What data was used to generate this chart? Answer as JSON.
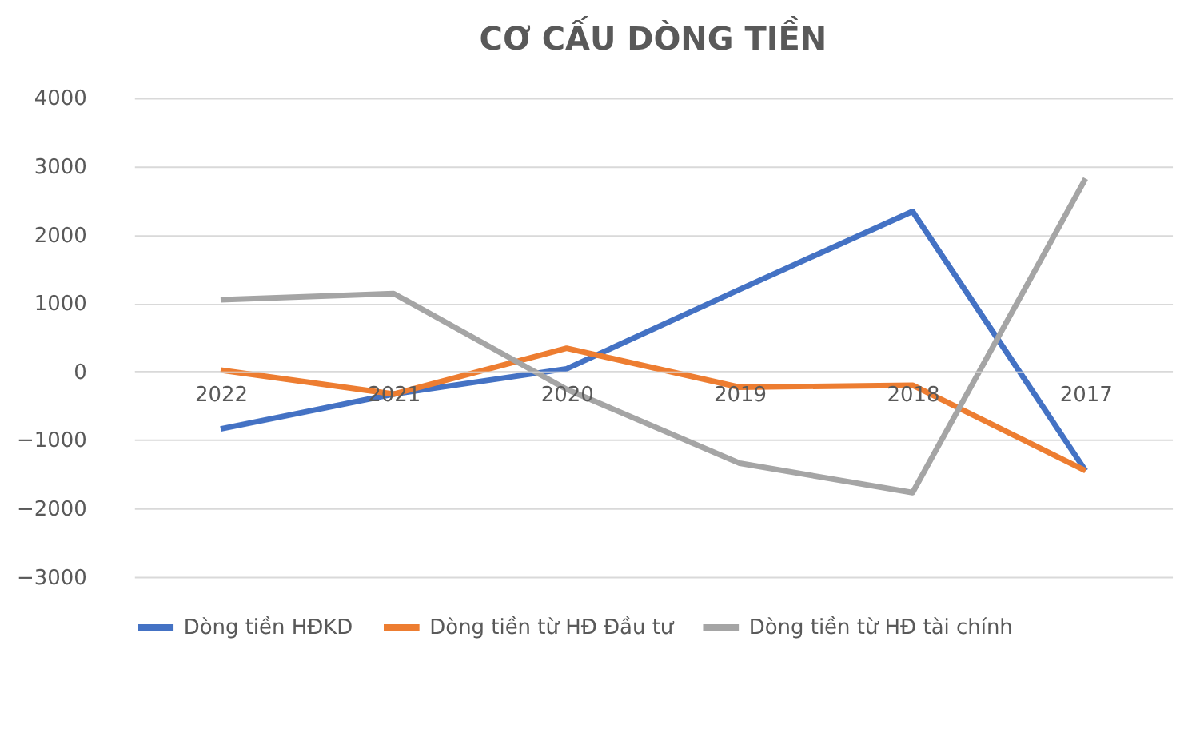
{
  "chart_data": {
    "type": "line",
    "title": "CƠ CẤU DÒNG TIỀN",
    "categories": [
      "2022",
      "2021",
      "2020",
      "2019",
      "2018",
      "2017"
    ],
    "series": [
      {
        "name": "Dòng tiền HĐKD",
        "color": "#4472c4",
        "values": [
          -840,
          -330,
          40,
          1200,
          2340,
          -1450
        ]
      },
      {
        "name": "Dòng tiền từ HĐ Đầu tư",
        "color": "#ed7d31",
        "values": [
          20,
          -330,
          340,
          -230,
          -200,
          -1450
        ]
      },
      {
        "name": "Dòng tiền từ HĐ tài chính",
        "color": "#a5a5a5",
        "values": [
          1050,
          1140,
          -260,
          -1340,
          -1770,
          2820
        ]
      }
    ],
    "ylim": [
      -3000,
      4000
    ],
    "yticks": [
      -3000,
      -2000,
      -1000,
      0,
      1000,
      2000,
      3000,
      4000
    ],
    "grid": "y",
    "legend": "bottom",
    "marker": "none",
    "line_style": "solid"
  }
}
